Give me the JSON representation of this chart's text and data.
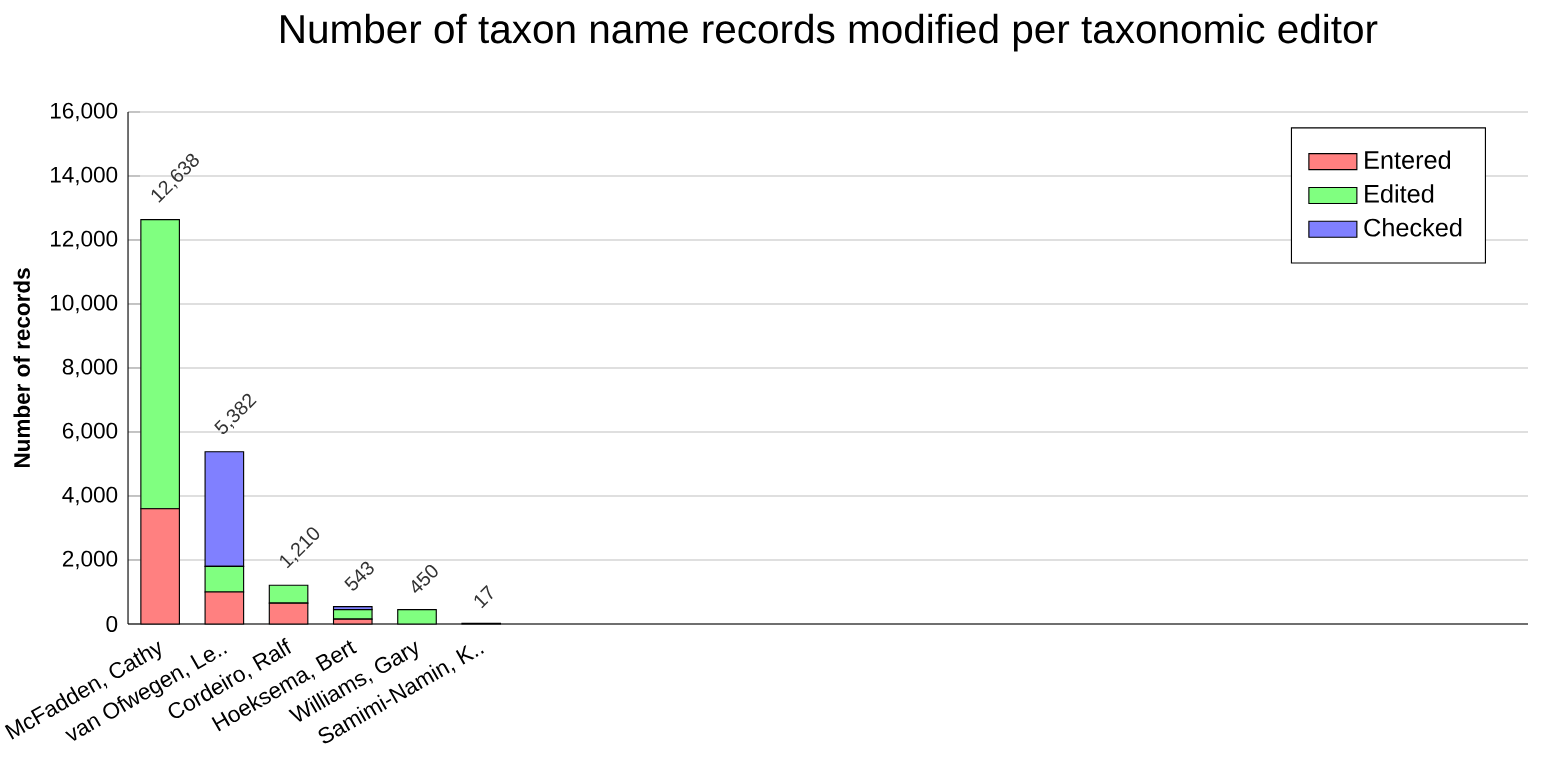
{
  "chart_data": {
    "type": "bar",
    "title": "Number of taxon name records modified per taxonomic editor",
    "ylabel": "Number of records",
    "categories": [
      "McFadden, Cathy",
      "van Ofwegen, Le..",
      "Cordeiro, Ralf",
      "Hoeksema, Bert",
      "Williams, Gary",
      "Samimi-Namin, K.."
    ],
    "stacked": true,
    "series": [
      {
        "name": "Entered",
        "color": "#ff8080",
        "values": [
          3600,
          1000,
          650,
          150,
          null,
          0
        ]
      },
      {
        "name": "Edited",
        "color": "#80ff80",
        "values": [
          9038,
          800,
          560,
          300,
          450,
          0
        ]
      },
      {
        "name": "Checked",
        "color": "#8080ff",
        "values": [
          null,
          3582,
          null,
          93,
          null,
          17
        ]
      }
    ],
    "totals": [
      "12,638",
      "5,382",
      "1,210",
      "543",
      "450",
      "17"
    ],
    "ylim": [
      0,
      16000
    ],
    "yticks": [
      {
        "value": 0,
        "label": "0"
      },
      {
        "value": 2000,
        "label": "2,000"
      },
      {
        "value": 4000,
        "label": "4,000"
      },
      {
        "value": 6000,
        "label": "6,000"
      },
      {
        "value": 8000,
        "label": "8,000"
      },
      {
        "value": 10000,
        "label": "10,000"
      },
      {
        "value": 12000,
        "label": "12,000"
      },
      {
        "value": 14000,
        "label": "14,000"
      },
      {
        "value": 16000,
        "label": "16,000"
      }
    ],
    "grid": "y",
    "legend": "top right"
  }
}
